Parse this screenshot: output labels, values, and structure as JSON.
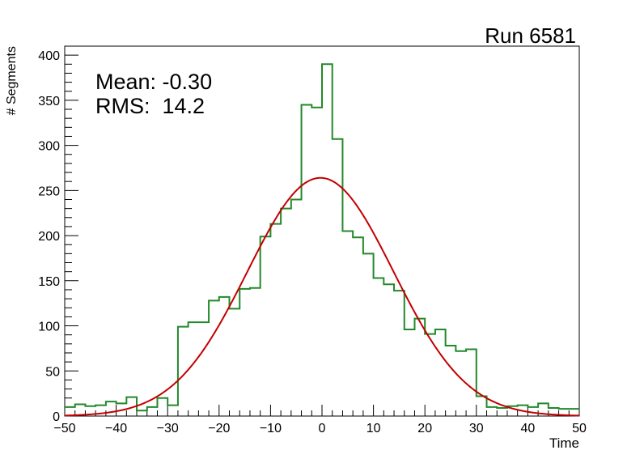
{
  "chart_data": {
    "type": "histogram",
    "title": "Run 6581",
    "xlabel": "Time",
    "ylabel": "# Segments",
    "xlim": [
      -50,
      50
    ],
    "ylim": [
      0,
      410
    ],
    "x_ticks": [
      "−50",
      "−40",
      "−30",
      "−20",
      "−10",
      "0",
      "10",
      "20",
      "30",
      "40",
      "50"
    ],
    "y_ticks": [
      "0",
      "50",
      "100",
      "150",
      "200",
      "250",
      "300",
      "350",
      "400"
    ],
    "stats": {
      "mean_label": "Mean: -0.30",
      "rms_label": "RMS:  14.2"
    },
    "bin_width": 2,
    "bin_edges_start": -50,
    "histogram_values": [
      10,
      13,
      11,
      12,
      16,
      14,
      21,
      6,
      10,
      20,
      12,
      99,
      104,
      104,
      128,
      132,
      119,
      141,
      142,
      199,
      213,
      230,
      240,
      345,
      342,
      390,
      307,
      205,
      198,
      180,
      153,
      146,
      139,
      96,
      108,
      91,
      96,
      78,
      72,
      74,
      22,
      10,
      9,
      11,
      12,
      10,
      14,
      9,
      8,
      8
    ],
    "gaussian_fit": {
      "mean": -0.3,
      "sigma": 14.2,
      "amplitude": 264
    },
    "colors": {
      "histogram": "#22892a",
      "fit": "#c20000",
      "frame": "#000000"
    }
  }
}
